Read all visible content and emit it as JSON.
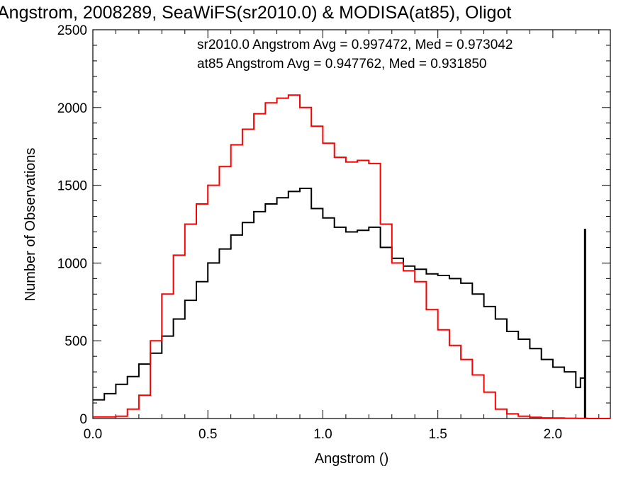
{
  "chart_data": {
    "type": "line",
    "title": "Angstrom, 2008289, SeaWiFS(sr2010.0) & MODISA(at85), Oligot",
    "xlabel": "Angstrom ()",
    "ylabel": "Number of Observations",
    "xlim": [
      0.0,
      2.25
    ],
    "ylim": [
      0,
      2500
    ],
    "xticks": [
      "0.0",
      "0.5",
      "1.0",
      "1.5",
      "2.0"
    ],
    "yticks": [
      "0",
      "500",
      "1000",
      "1500",
      "2000",
      "2500"
    ],
    "xtick_values": [
      0.0,
      0.5,
      1.0,
      1.5,
      2.0
    ],
    "ytick_values": [
      0,
      500,
      1000,
      1500,
      2000,
      2500
    ],
    "grid": false,
    "annotations": [
      {
        "text": "sr2010.0 Angstrom Avg = 0.997472, Med = 0.973042",
        "color": "#000000"
      },
      {
        "text": "at85 Angstrom Avg = 0.947762, Med = 0.931850",
        "color": "#ff0000"
      }
    ],
    "series": [
      {
        "color": "#000000",
        "x": [
          0.0,
          0.05,
          0.1,
          0.15,
          0.2,
          0.25,
          0.3,
          0.35,
          0.4,
          0.45,
          0.5,
          0.55,
          0.6,
          0.65,
          0.7,
          0.75,
          0.8,
          0.85,
          0.9,
          0.95,
          1.0,
          1.05,
          1.1,
          1.15,
          1.2,
          1.25,
          1.3,
          1.35,
          1.4,
          1.45,
          1.5,
          1.55,
          1.6,
          1.65,
          1.7,
          1.75,
          1.8,
          1.85,
          1.9,
          1.95,
          2.0,
          2.05,
          2.1,
          2.12,
          2.14
        ],
        "y": [
          120,
          160,
          220,
          270,
          350,
          420,
          530,
          640,
          760,
          880,
          1000,
          1090,
          1180,
          1260,
          1330,
          1380,
          1420,
          1460,
          1480,
          1350,
          1290,
          1230,
          1200,
          1210,
          1230,
          1100,
          1030,
          980,
          960,
          930,
          920,
          900,
          870,
          800,
          720,
          640,
          560,
          510,
          450,
          380,
          330,
          300,
          200,
          260,
          330
        ],
        "spike": {
          "x": 2.14,
          "y": 1220
        }
      },
      {
        "color": "#ff0000",
        "x": [
          0.0,
          0.05,
          0.1,
          0.15,
          0.2,
          0.25,
          0.3,
          0.35,
          0.4,
          0.45,
          0.5,
          0.55,
          0.6,
          0.65,
          0.7,
          0.75,
          0.8,
          0.85,
          0.9,
          0.95,
          1.0,
          1.05,
          1.1,
          1.15,
          1.2,
          1.25,
          1.3,
          1.35,
          1.4,
          1.45,
          1.5,
          1.55,
          1.6,
          1.65,
          1.7,
          1.75,
          1.8,
          1.85,
          1.9,
          1.95,
          2.0,
          2.05,
          2.1,
          2.15,
          2.2,
          2.25
        ],
        "y": [
          10,
          10,
          15,
          60,
          150,
          500,
          800,
          1050,
          1250,
          1380,
          1500,
          1620,
          1760,
          1860,
          1960,
          2030,
          2060,
          2080,
          2000,
          1880,
          1770,
          1680,
          1650,
          1660,
          1640,
          1250,
          1000,
          950,
          880,
          700,
          570,
          470,
          380,
          280,
          170,
          60,
          30,
          15,
          8,
          4,
          3,
          2,
          1,
          0,
          0,
          0
        ]
      }
    ]
  }
}
